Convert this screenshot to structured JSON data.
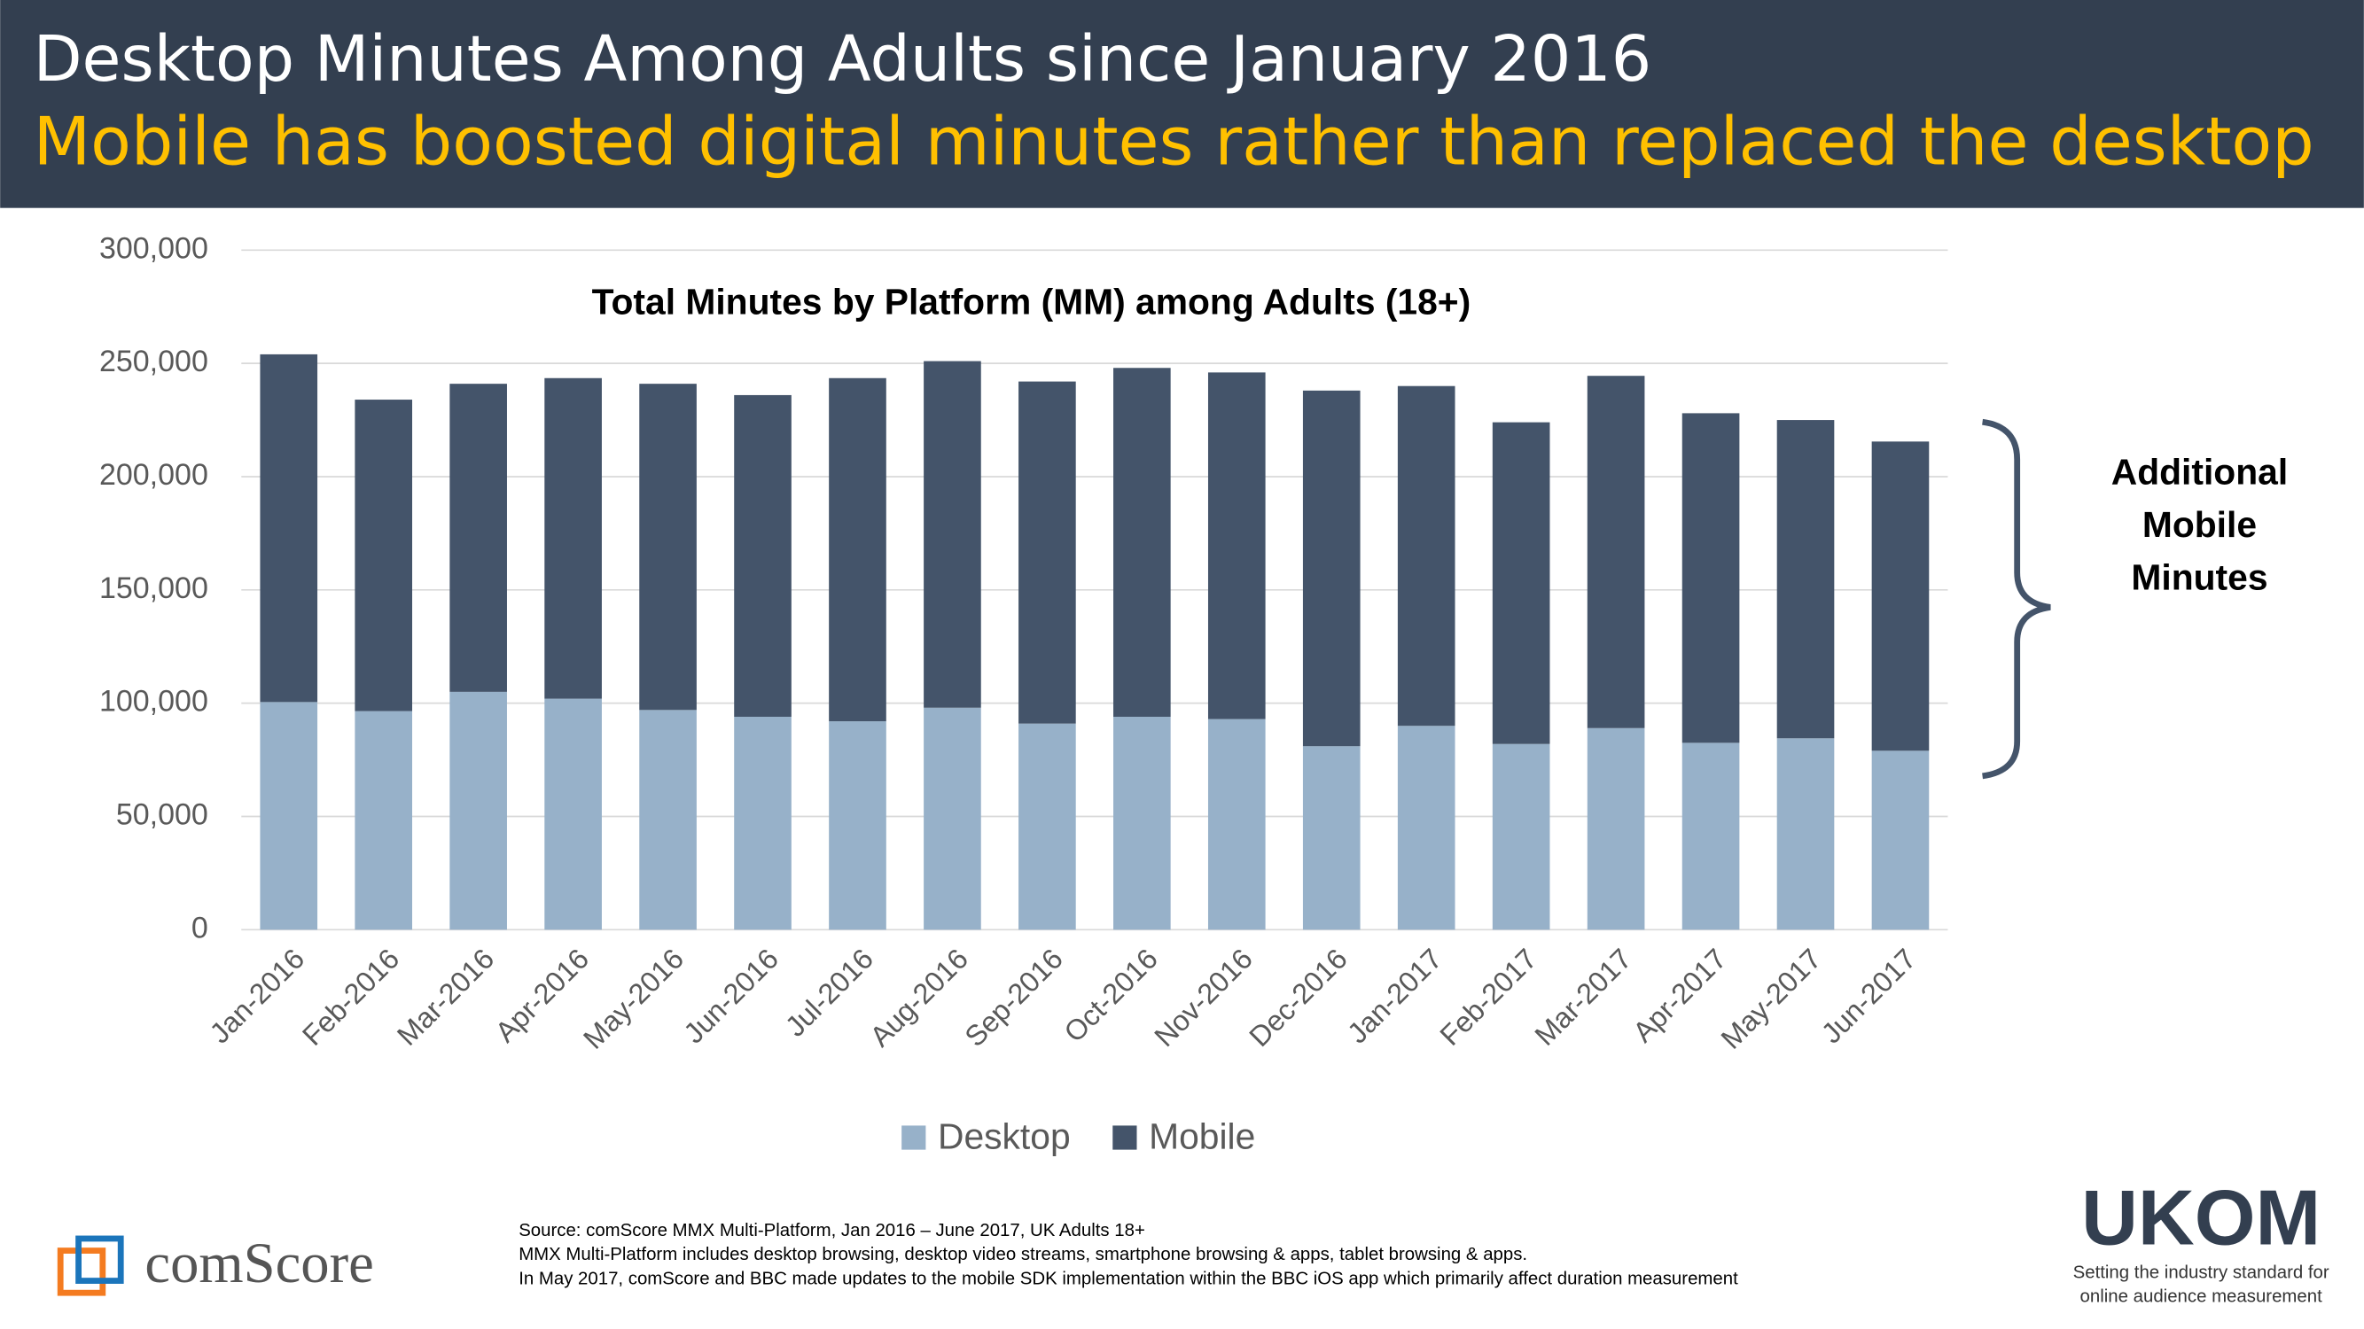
{
  "header": {
    "title": "Desktop Minutes Among Adults since January 2016",
    "subtitle": "Mobile has boosted digital minutes rather than replaced the desktop"
  },
  "chart_data": {
    "type": "stacked_bar",
    "title": "Total Minutes by Platform (MM) among Adults (18+)",
    "categories": [
      "Jan-2016",
      "Feb-2016",
      "Mar-2016",
      "Apr-2016",
      "May-2016",
      "Jun-2016",
      "Jul-2016",
      "Aug-2016",
      "Sep-2016",
      "Oct-2016",
      "Nov-2016",
      "Dec-2016",
      "Jan-2017",
      "Feb-2017",
      "Mar-2017",
      "Apr-2017",
      "May-2017",
      "Jun-2017"
    ],
    "series": [
      {
        "name": "Desktop",
        "color": "#97b1c9",
        "values": [
          100500,
          96500,
          105000,
          102000,
          97000,
          94000,
          92000,
          98000,
          91000,
          94000,
          93000,
          81000,
          90000,
          82000,
          89000,
          82500,
          84500,
          79000
        ]
      },
      {
        "name": "Mobile",
        "color": "#44546a",
        "values": [
          153500,
          137500,
          136000,
          141500,
          144000,
          142000,
          151500,
          153000,
          151000,
          154000,
          153000,
          157000,
          150000,
          142000,
          155500,
          145500,
          140500,
          136500
        ]
      }
    ],
    "ylim": [
      0,
      300000
    ],
    "yticks": [
      0,
      {
        "value": 50000,
        "label": "50,000"
      },
      {
        "value": 100000,
        "label": "100,000"
      },
      {
        "value": 150000,
        "label": "150,000"
      },
      {
        "value": 200000,
        "label": "200,000"
      },
      {
        "value": 250000,
        "label": "250,000"
      },
      {
        "value": 300000,
        "label": "300,000"
      }
    ],
    "grid": true,
    "legend": "bottom",
    "annotation": [
      "Additional",
      "Mobile",
      "Minutes"
    ]
  },
  "footer": {
    "notes": [
      "Source: comScore MMX Multi-Platform, Jan 2016 – June 2017, UK Adults 18+",
      "MMX Multi-Platform includes desktop browsing, desktop video streams, smartphone browsing & apps, tablet browsing & apps.",
      "In May 2017, comScore and BBC made updates to the mobile SDK implementation within the BBC iOS app which primarily affect duration measurement"
    ]
  },
  "logos": {
    "left": "comScore",
    "right": "UKOM",
    "right_tagline": [
      "Setting the industry standard for",
      "online audience measurement"
    ]
  }
}
